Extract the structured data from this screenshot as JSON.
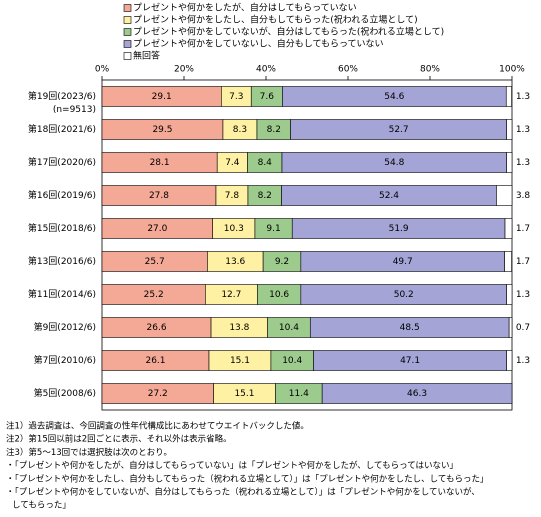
{
  "chart_data": {
    "type": "stacked-bar-horizontal",
    "categories": [
      "第19回(2023/6)",
      "第18回(2021/6)",
      "第17回(2020/6)",
      "第16回(2019/6)",
      "第15回(2018/6)",
      "第13回(2016/6)",
      "第11回(2014/6)",
      "第9回(2012/6)",
      "第7回(2010/6)",
      "第5回(2008/6)"
    ],
    "category_note": "(n=9513)",
    "series": [
      {
        "name": "プレゼントや何かをしたが、自分はしてもらっていない",
        "color": "#f4a896",
        "values": [
          29.1,
          29.5,
          28.1,
          27.8,
          27.0,
          25.7,
          25.2,
          26.6,
          26.1,
          27.2
        ],
        "value_labels": [
          "29.1",
          "29.5",
          "28.1",
          "27.8",
          "27.0",
          "25.7",
          "25.2",
          "26.6",
          "26.1",
          "27.2"
        ]
      },
      {
        "name": "プレゼントや何かをしたし、自分もしてもらった(祝われる立場として)",
        "color": "#fff1a3",
        "values": [
          7.3,
          8.3,
          7.4,
          7.8,
          10.3,
          13.6,
          12.7,
          13.8,
          15.1,
          15.1
        ],
        "value_labels": [
          "7.3",
          "8.3",
          "7.4",
          "7.8",
          "10.3",
          "13.6",
          "12.7",
          "13.8",
          "15.1",
          "15.1"
        ]
      },
      {
        "name": "プレゼントや何かをしていないが、自分はしてもらった(祝われる立場として)",
        "color": "#9dcb8d",
        "values": [
          7.6,
          8.2,
          8.4,
          8.2,
          9.1,
          9.2,
          10.6,
          10.4,
          10.4,
          11.4
        ],
        "value_labels": [
          "7.6",
          "8.2",
          "8.4",
          "8.2",
          "9.1",
          "9.2",
          "10.6",
          "10.4",
          "10.4",
          "11.4"
        ]
      },
      {
        "name": "プレゼントや何かをしていないし、自分もしてもらっていない",
        "color": "#a4a4d6",
        "values": [
          54.6,
          52.7,
          54.8,
          52.4,
          51.9,
          49.7,
          50.2,
          48.5,
          47.1,
          46.3
        ],
        "value_labels": [
          "54.6",
          "52.7",
          "54.8",
          "52.4",
          "51.9",
          "49.7",
          "50.2",
          "48.5",
          "47.1",
          "46.3"
        ]
      },
      {
        "name": "無回答",
        "color": "#ffffff",
        "values": [
          1.3,
          1.3,
          1.3,
          3.8,
          1.7,
          1.7,
          1.3,
          0.7,
          1.3,
          null
        ],
        "value_labels": [
          "1.3",
          "1.3",
          "1.3",
          "3.8",
          "1.7",
          "1.7",
          "1.3",
          "0.7",
          "1.3",
          null
        ]
      }
    ],
    "xlim": [
      0,
      100
    ],
    "xticks": [
      {
        "value": 0,
        "label": "0%"
      },
      {
        "value": 20,
        "label": "20%"
      },
      {
        "value": 40,
        "label": "40%"
      },
      {
        "value": 60,
        "label": "60%"
      },
      {
        "value": 80,
        "label": "80%"
      },
      {
        "value": 100,
        "label": "100%"
      }
    ],
    "notes": [
      "注1）過去調査は、今回調査の性年代構成比にあわせてウエイトバックした値。",
      "注2）第15回以前は2回ごとに表示、それ以外は表示省略。",
      "注3）第5～13回では選択肢は次のとおり。",
      "・「プレゼントや何かをしたが、自分はしてもらっていない」は「プレゼントや何かをしたが、してもらってはいない」",
      "・「プレゼントや何かをしたし、自分もしてもらった（祝われる立場として）」は「プレゼントや何かをしたし、してもらった」",
      "・「プレゼントや何かをしていないが、自分はしてもらった（祝われる立場として）」は「プレゼントや何かをしていないが、",
      "してもらった」"
    ]
  }
}
